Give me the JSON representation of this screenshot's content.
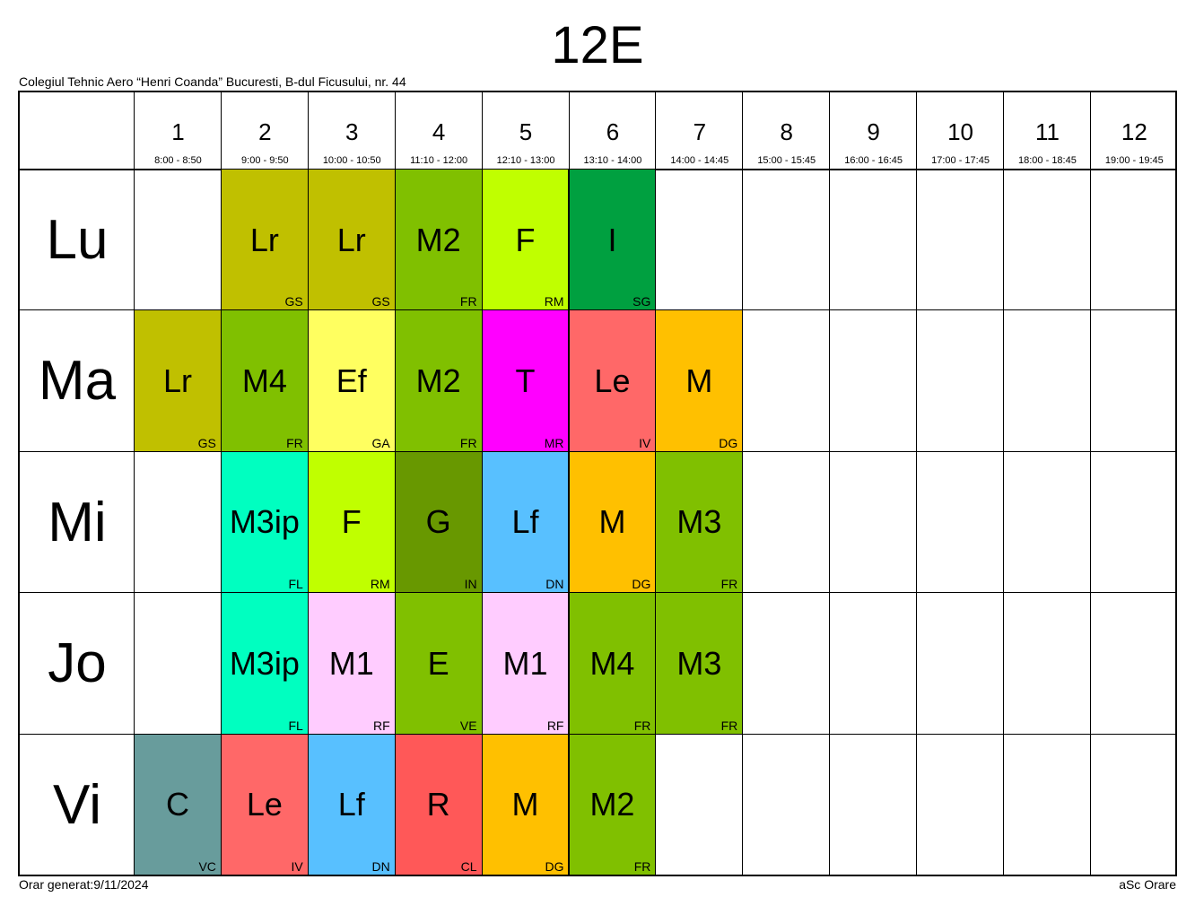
{
  "title": "12E",
  "school": "Colegiul Tehnic Aero “Henri Coanda” Bucuresti, B-dul Ficusului, nr. 44",
  "footer": {
    "generated": "Orar generat:9/11/2024",
    "brand": "aSc Orare"
  },
  "periods": [
    {
      "num": "1",
      "time": "8:00 - 8:50"
    },
    {
      "num": "2",
      "time": "9:00 - 9:50"
    },
    {
      "num": "3",
      "time": "10:00 - 10:50"
    },
    {
      "num": "4",
      "time": "11:10 - 12:00"
    },
    {
      "num": "5",
      "time": "12:10 - 13:00"
    },
    {
      "num": "6",
      "time": "13:10 - 14:00"
    },
    {
      "num": "7",
      "time": "14:00 - 14:45"
    },
    {
      "num": "8",
      "time": "15:00 - 15:45"
    },
    {
      "num": "9",
      "time": "16:00 - 16:45"
    },
    {
      "num": "10",
      "time": "17:00 - 17:45"
    },
    {
      "num": "11",
      "time": "18:00 - 18:45"
    },
    {
      "num": "12",
      "time": "19:00 - 19:45"
    }
  ],
  "days": [
    {
      "label": "Lu",
      "lessons": [
        null,
        {
          "subject": "Lr",
          "teacher": "GS",
          "color": "#c0c000"
        },
        {
          "subject": "Lr",
          "teacher": "GS",
          "color": "#c0c000"
        },
        {
          "subject": "M2",
          "teacher": "FR",
          "color": "#80c000"
        },
        {
          "subject": "F",
          "teacher": "RM",
          "color": "#c0ff00"
        },
        {
          "subject": "I",
          "teacher": "SG",
          "color": "#00a040"
        },
        null,
        null,
        null,
        null,
        null,
        null
      ]
    },
    {
      "label": "Ma",
      "lessons": [
        {
          "subject": "Lr",
          "teacher": "GS",
          "color": "#c0c000"
        },
        {
          "subject": "M4",
          "teacher": "FR",
          "color": "#80c000"
        },
        {
          "subject": "Ef",
          "teacher": "GA",
          "color": "#ffff60"
        },
        {
          "subject": "M2",
          "teacher": "FR",
          "color": "#80c000"
        },
        {
          "subject": "T",
          "teacher": "MR",
          "color": "#ff00ff"
        },
        {
          "subject": "Le",
          "teacher": "IV",
          "color": "#ff6868"
        },
        {
          "subject": "M",
          "teacher": "DG",
          "color": "#ffc000"
        },
        null,
        null,
        null,
        null,
        null
      ]
    },
    {
      "label": "Mi",
      "lessons": [
        null,
        {
          "subject": "M3ip",
          "teacher": "FL",
          "color": "#00ffc0"
        },
        {
          "subject": "F",
          "teacher": "RM",
          "color": "#c0ff00"
        },
        {
          "subject": "G",
          "teacher": "IN",
          "color": "#689800"
        },
        {
          "subject": "Lf",
          "teacher": "DN",
          "color": "#58c0ff"
        },
        {
          "subject": "M",
          "teacher": "DG",
          "color": "#ffc000"
        },
        {
          "subject": "M3",
          "teacher": "FR",
          "color": "#80c000"
        },
        null,
        null,
        null,
        null,
        null
      ]
    },
    {
      "label": "Jo",
      "lessons": [
        null,
        {
          "subject": "M3ip",
          "teacher": "FL",
          "color": "#00ffc0"
        },
        {
          "subject": "M1",
          "teacher": "RF",
          "color": "#ffccff"
        },
        {
          "subject": "E",
          "teacher": "VE",
          "color": "#80c000"
        },
        {
          "subject": "M1",
          "teacher": "RF",
          "color": "#ffccff"
        },
        {
          "subject": "M4",
          "teacher": "FR",
          "color": "#80c000"
        },
        {
          "subject": "M3",
          "teacher": "FR",
          "color": "#80c000"
        },
        null,
        null,
        null,
        null,
        null
      ]
    },
    {
      "label": "Vi",
      "lessons": [
        {
          "subject": "C",
          "teacher": "VC",
          "color": "#689c9c"
        },
        {
          "subject": "Le",
          "teacher": "IV",
          "color": "#ff6868"
        },
        {
          "subject": "Lf",
          "teacher": "DN",
          "color": "#58c0ff"
        },
        {
          "subject": "R",
          "teacher": "CL",
          "color": "#ff5858"
        },
        {
          "subject": "M",
          "teacher": "DG",
          "color": "#ffc000"
        },
        {
          "subject": "M2",
          "teacher": "FR",
          "color": "#80c000"
        },
        null,
        null,
        null,
        null,
        null,
        null
      ]
    }
  ]
}
